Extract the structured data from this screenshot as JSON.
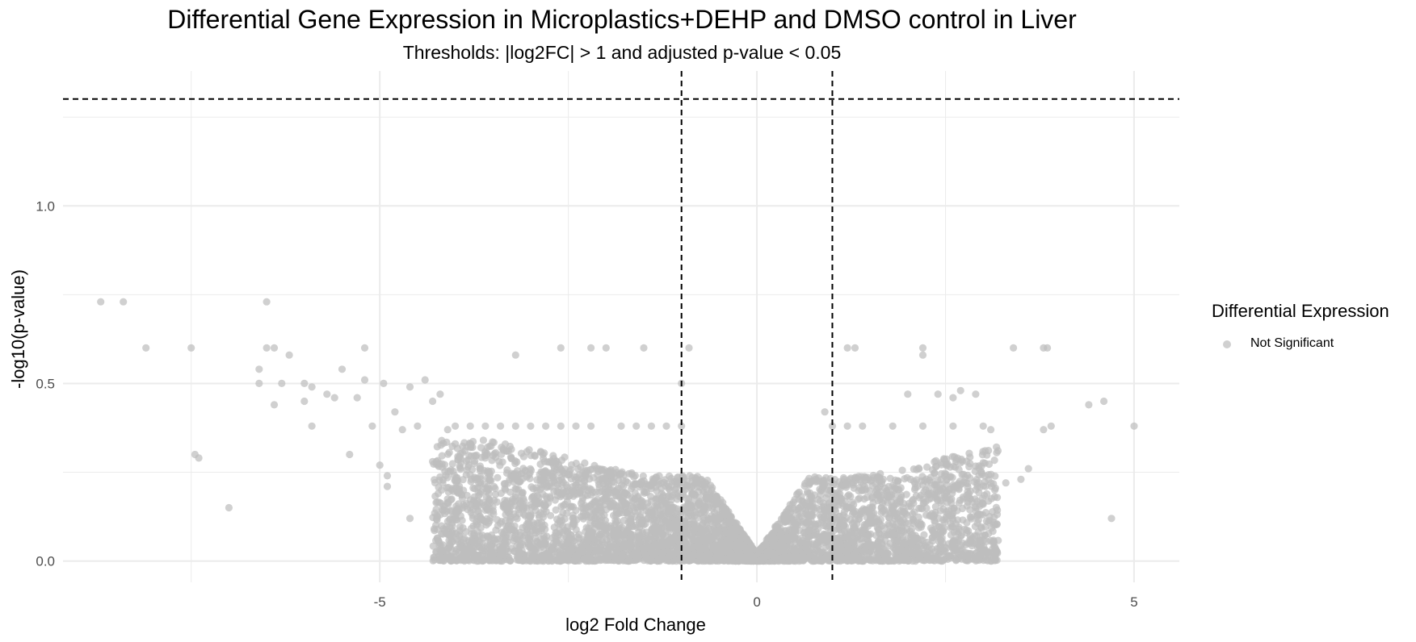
{
  "colors": {
    "not_significant": "#bebebe",
    "threshold_line": "#000000",
    "grid": "#ebebeb"
  },
  "chart_data": {
    "type": "scatter",
    "title": "Differential Gene Expression in Microplastics+DEHP and DMSO control in Liver",
    "subtitle": "Thresholds: |log2FC| > 1 and adjusted p-value < 0.05",
    "xlabel": "log2 Fold Change",
    "ylabel": "-log10(p-value)",
    "xlim": [
      -9.2,
      5.6
    ],
    "ylim": [
      -0.06,
      1.38
    ],
    "x_ticks": [
      -5,
      0,
      5
    ],
    "x_tick_labels": [
      "-5",
      "0",
      "5"
    ],
    "y_ticks": [
      0.0,
      0.5,
      1.0
    ],
    "y_tick_labels": [
      "0.0",
      "0.5",
      "1.0"
    ],
    "grid": true,
    "vertical_thresholds": [
      -1,
      1
    ],
    "horizontal_threshold": 1.301,
    "legend": {
      "title": "Differential Expression",
      "position": "right"
    },
    "series": [
      {
        "name": "Not Significant",
        "color": "#bebebe",
        "points": [
          [
            -8.7,
            0.73
          ],
          [
            -8.4,
            0.73
          ],
          [
            -8.1,
            0.6
          ],
          [
            -7.5,
            0.6
          ],
          [
            -7.45,
            0.3
          ],
          [
            -7.4,
            0.29
          ],
          [
            -7.0,
            0.15
          ],
          [
            -6.6,
            0.5
          ],
          [
            -6.6,
            0.54
          ],
          [
            -6.5,
            0.73
          ],
          [
            -6.5,
            0.6
          ],
          [
            -6.4,
            0.6
          ],
          [
            -6.4,
            0.44
          ],
          [
            -6.2,
            0.58
          ],
          [
            -6.3,
            0.5
          ],
          [
            -6.0,
            0.5
          ],
          [
            -6.0,
            0.45
          ],
          [
            -5.9,
            0.38
          ],
          [
            -5.9,
            0.49
          ],
          [
            -5.7,
            0.47
          ],
          [
            -5.6,
            0.46
          ],
          [
            -5.5,
            0.54
          ],
          [
            -5.4,
            0.3
          ],
          [
            -5.2,
            0.6
          ],
          [
            -5.1,
            0.38
          ],
          [
            -5.0,
            0.27
          ],
          [
            -4.9,
            0.24
          ],
          [
            -5.3,
            0.46
          ],
          [
            -5.2,
            0.51
          ],
          [
            -4.95,
            0.5
          ],
          [
            -4.8,
            0.42
          ],
          [
            -4.7,
            0.37
          ],
          [
            -4.6,
            0.49
          ],
          [
            -4.4,
            0.51
          ],
          [
            -4.3,
            0.45
          ],
          [
            -4.2,
            0.47
          ],
          [
            -4.1,
            0.37
          ],
          [
            -4.0,
            0.33
          ],
          [
            -4.9,
            0.21
          ],
          [
            -4.5,
            0.38
          ],
          [
            -4.3,
            0.28
          ],
          [
            -3.2,
            0.58
          ],
          [
            -2.6,
            0.6
          ],
          [
            -2.2,
            0.6
          ],
          [
            -2.0,
            0.6
          ],
          [
            -1.5,
            0.6
          ],
          [
            -1.0,
            0.5
          ],
          [
            -0.9,
            0.6
          ],
          [
            0.9,
            0.42
          ],
          [
            1.2,
            0.6
          ],
          [
            1.3,
            0.6
          ],
          [
            2.2,
            0.6
          ],
          [
            2.2,
            0.58
          ],
          [
            3.4,
            0.6
          ],
          [
            3.8,
            0.6
          ],
          [
            3.85,
            0.6
          ],
          [
            4.6,
            0.45
          ],
          [
            4.4,
            0.44
          ],
          [
            5.0,
            0.38
          ],
          [
            4.7,
            0.12
          ],
          [
            3.9,
            0.38
          ],
          [
            3.8,
            0.37
          ],
          [
            3.6,
            0.26
          ],
          [
            3.5,
            0.23
          ],
          [
            3.3,
            0.22
          ],
          [
            3.1,
            0.37
          ],
          [
            2.9,
            0.47
          ],
          [
            2.7,
            0.48
          ],
          [
            2.6,
            0.46
          ],
          [
            2.4,
            0.47
          ],
          [
            2.0,
            0.47
          ],
          [
            2.9,
            0.15
          ],
          [
            2.95,
            0.04
          ],
          [
            2.7,
            0.03
          ],
          [
            3.0,
            0.16
          ],
          [
            -3.8,
            0.15
          ],
          [
            -3.6,
            0.11
          ],
          [
            -3.0,
            0.04
          ],
          [
            -2.5,
            0.05
          ],
          [
            -2.7,
            0.04
          ],
          [
            -2.3,
            0.02
          ],
          [
            -4.2,
            0.13
          ],
          [
            -4.6,
            0.12
          ],
          [
            -4.0,
            0.38
          ],
          [
            -3.8,
            0.38
          ],
          [
            -3.6,
            0.38
          ],
          [
            -3.4,
            0.38
          ],
          [
            -3.2,
            0.38
          ],
          [
            -3.0,
            0.38
          ],
          [
            -2.8,
            0.38
          ],
          [
            -2.6,
            0.38
          ],
          [
            -2.4,
            0.38
          ],
          [
            -2.2,
            0.38
          ],
          [
            -1.8,
            0.38
          ],
          [
            -1.6,
            0.38
          ],
          [
            -1.4,
            0.38
          ],
          [
            -1.2,
            0.38
          ],
          [
            -1.0,
            0.38
          ],
          [
            1.0,
            0.38
          ],
          [
            1.2,
            0.38
          ],
          [
            1.4,
            0.38
          ],
          [
            1.8,
            0.38
          ],
          [
            2.2,
            0.38
          ],
          [
            2.6,
            0.38
          ],
          [
            3.0,
            0.38
          ]
        ]
      }
    ]
  }
}
